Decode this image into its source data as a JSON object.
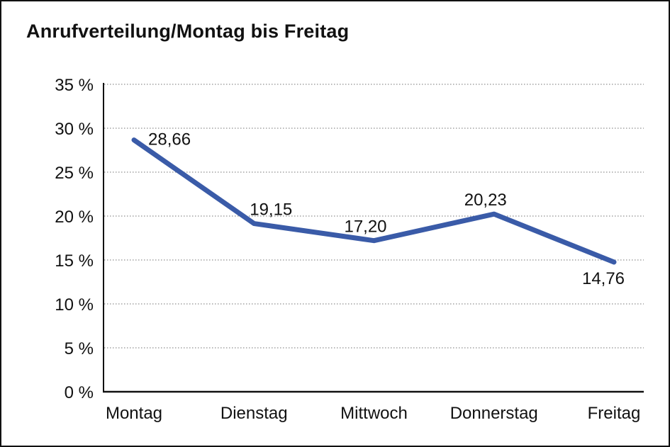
{
  "chart_data": {
    "type": "line",
    "title": "Anrufverteilung/Montag bis Freitag",
    "categories": [
      "Montag",
      "Dienstag",
      "Mittwoch",
      "Donnerstag",
      "Freitag"
    ],
    "series": [
      {
        "name": "Anrufverteilung",
        "values": [
          28.66,
          19.15,
          17.2,
          20.23,
          14.76
        ],
        "color": "#3A5BA8"
      }
    ],
    "data_labels": [
      "28,66",
      "19,15",
      "17,20",
      "20,23",
      "14,76"
    ],
    "label_placements": [
      "right",
      "above-right",
      "above",
      "above",
      "below"
    ],
    "xlabel": "",
    "ylabel": "",
    "ylim": [
      0,
      35
    ],
    "y_ticks": [
      0,
      5,
      10,
      15,
      20,
      25,
      30,
      35
    ],
    "y_tick_labels": [
      "0 %",
      "5 %",
      "10 %",
      "15 %",
      "20 %",
      "25 %",
      "30 %",
      "35 %"
    ],
    "grid": "horizontal-dotted",
    "legend": "none",
    "colors": {
      "line": "#3A5BA8",
      "text": "#111111",
      "grid": "#8f8f8f",
      "axis": "#111111",
      "background": "#ffffff",
      "border": "#111111"
    }
  }
}
